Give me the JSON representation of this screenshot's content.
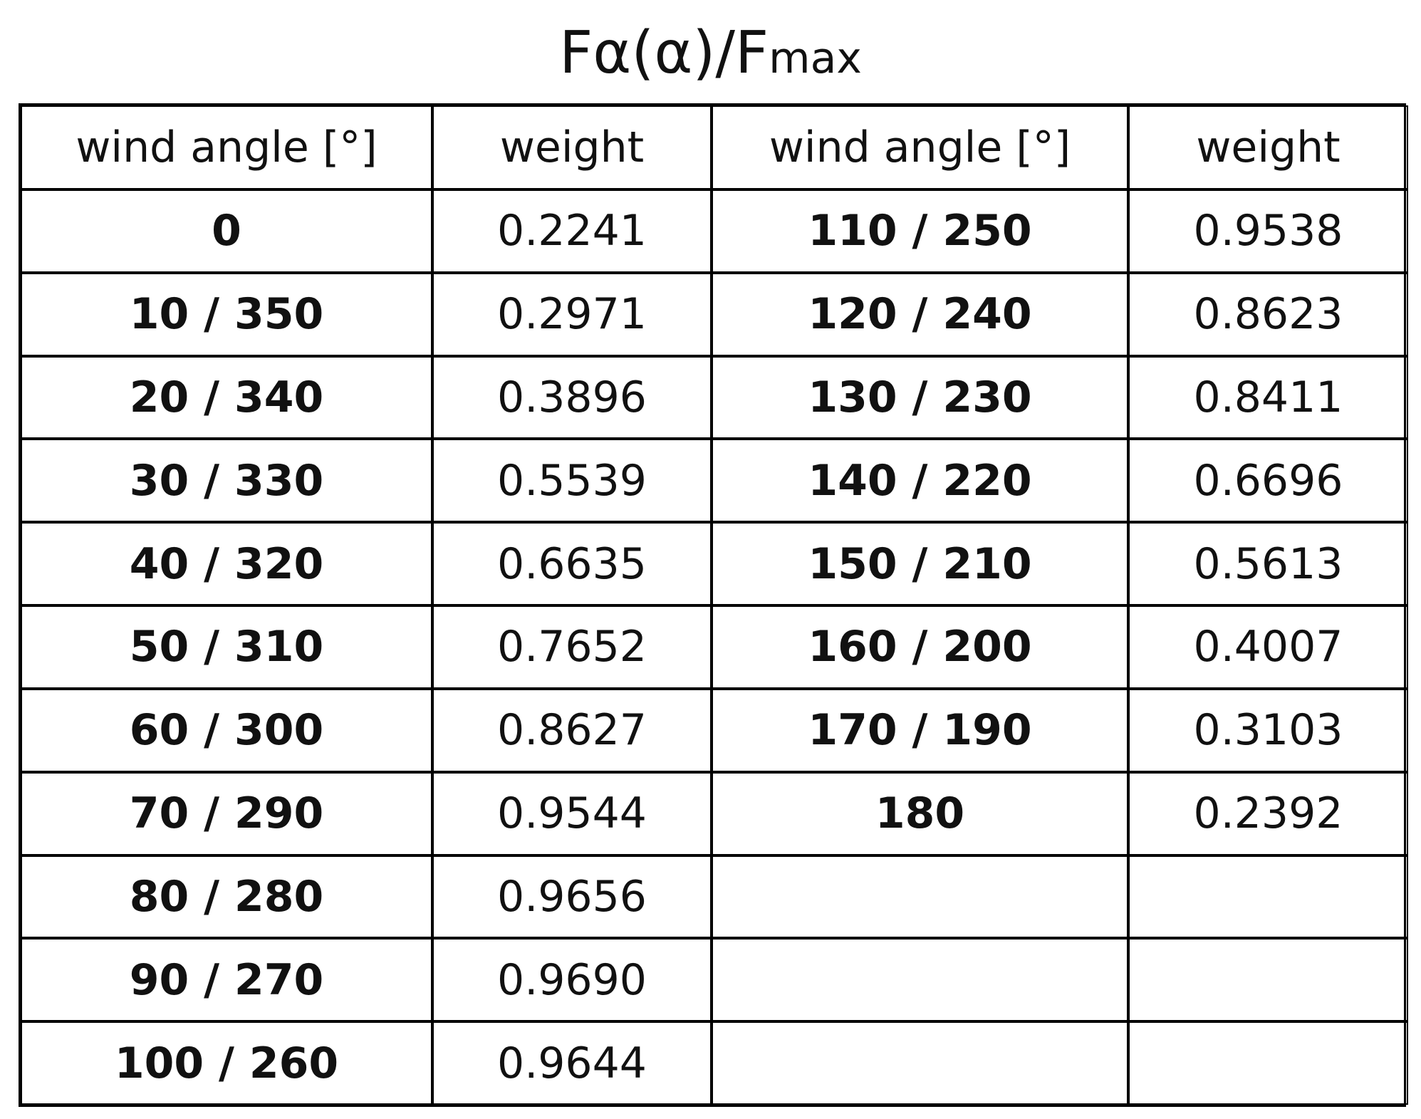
{
  "title": {
    "main": "Fα(α)/F",
    "sub": "max"
  },
  "table": {
    "headers": [
      "wind angle [°]",
      "weight",
      "wind angle [°]",
      "weight"
    ],
    "left_rows": [
      [
        "0",
        "0.2241"
      ],
      [
        "10 / 350",
        "0.2971"
      ],
      [
        "20 / 340",
        "0.3896"
      ],
      [
        "30 / 330",
        "0.5539"
      ],
      [
        "40 / 320",
        "0.6635"
      ],
      [
        "50 / 310",
        "0.7652"
      ],
      [
        "60 / 300",
        "0.8627"
      ],
      [
        "70 / 290",
        "0.9544"
      ],
      [
        "80 / 280",
        "0.9656"
      ],
      [
        "90 / 270",
        "0.9690"
      ],
      [
        "100 / 260",
        "0.9644"
      ]
    ],
    "right_rows": [
      [
        "110 / 250",
        "0.9538"
      ],
      [
        "120 / 240",
        "0.8623"
      ],
      [
        "130 / 230",
        "0.8411"
      ],
      [
        "140 / 220",
        "0.6696"
      ],
      [
        "150 / 210",
        "0.5613"
      ],
      [
        "160 / 200",
        "0.4007"
      ],
      [
        "170 / 190",
        "0.3103"
      ],
      [
        "180",
        "0.2392"
      ]
    ]
  }
}
